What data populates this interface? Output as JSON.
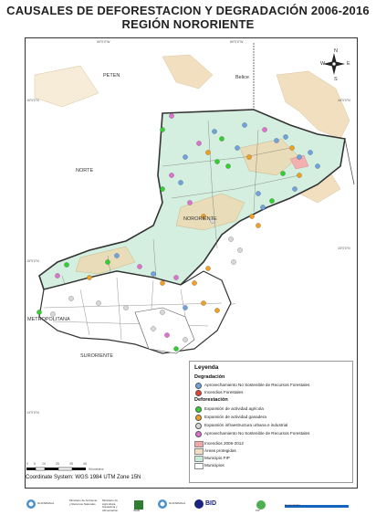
{
  "title_line1": "CAUSALES DE DEFORESTACION Y DEGRADACIÓN 2006-2016",
  "title_line2": "REGIÓN NORORIENTE",
  "region_labels": {
    "peten": "PETEN",
    "belice": "Belice",
    "norte": "NORTE",
    "nororiente": "NORORIENTE",
    "metropolitana": "METROPOLITANA",
    "suroriente": "SURORIENTE"
  },
  "grid_labels": {
    "top_left": "90°0'0\"W",
    "top_right": "89°0'0\"W",
    "right_top": "16°0'0\"N",
    "right_mid": "15°0'0\"N",
    "right_bot": "14°0'0\"N",
    "left_top": "16°0'0\"N",
    "left_mid": "15°0'0\"N",
    "left_bot": "14°0'0\"N",
    "bottom_left": "90°0'0\"W",
    "bottom_right": "89°0'0\"W"
  },
  "compass": {
    "n": "N",
    "s": "S",
    "e": "E",
    "w": "W"
  },
  "legend": {
    "title": "Leyenda",
    "sec_degradacion": "Degradación",
    "sec_deforestacion": "Deforestación",
    "items_degradacion": [
      {
        "label": "Aprovechamiento No Sostenible de Recursos Forestales",
        "color": "#6fa3e0"
      },
      {
        "label": "Incendios Forestales",
        "color": "#e8402a"
      }
    ],
    "items_deforestacion": [
      {
        "label": "Expansión de actividad agrícola",
        "color": "#2fd02f"
      },
      {
        "label": "Expansión de actividad ganadera",
        "color": "#f0a020"
      },
      {
        "label": "Expansión infraestructura urbana e industrial",
        "color": "#d8d8d8"
      },
      {
        "label": "Aprovechamiento No Sostenible de Recursos Forestales",
        "color": "#e070d0"
      }
    ],
    "areas": [
      {
        "label": "Incendios 2006-2012",
        "color": "#f4a9a9"
      },
      {
        "label": "Áreas protegidas",
        "color": "#f2e0c2"
      },
      {
        "label": "Municipio FIP",
        "color": "#c8ecd8"
      },
      {
        "label": "Municipios",
        "color": "#ffffff"
      }
    ]
  },
  "scale": {
    "ticks": [
      "0",
      "5",
      "10",
      "25",
      "35",
      "45"
    ],
    "unit": "Kilometers"
  },
  "coordinate_system": "Coordinate System: WGS 1984 UTM Zone 15N",
  "logos": {
    "guatemala1": "GUATEMALA",
    "ministerio_ambiente": "Ministerio de Ambiente y Recursos Naturales",
    "ministerio_agricultura": "Ministerio de Agricultura, Ganadería y Alimentación",
    "inab": "INAB",
    "guatemala2": "GUATEMALA",
    "bid": "BID",
    "fip": "FIP",
    "cooperacion": "Cooperación"
  },
  "colors": {
    "nororiente_fill": "#d4efe0",
    "protected_fill": "#f2dfc0",
    "fire_fill": "#f4b0b0",
    "border": "#333333"
  }
}
